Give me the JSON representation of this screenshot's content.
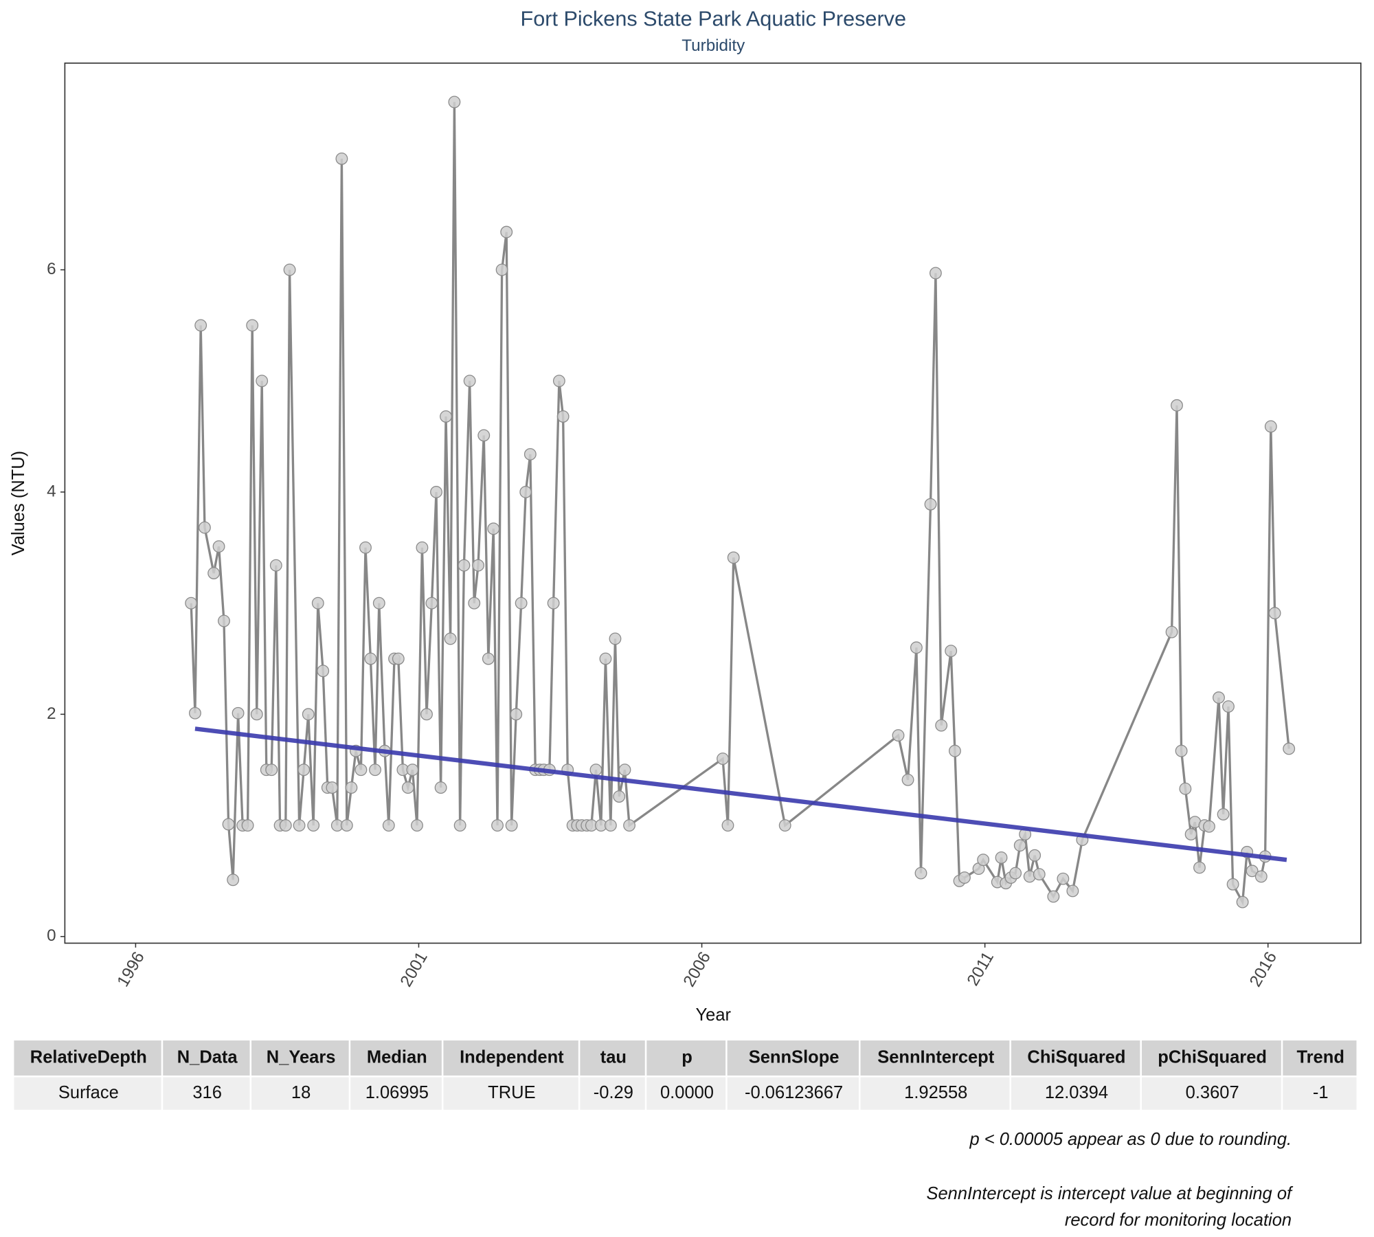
{
  "chart_data": {
    "type": "line",
    "title": "Fort Pickens State Park Aquatic Preserve",
    "subtitle": "Turbidity",
    "x_label": "Year",
    "y_label": "Values (NTU)",
    "xlim": [
      1994.75,
      2017.64
    ],
    "ylim": [
      -0.06,
      7.86
    ],
    "xticks": [
      1996,
      2001,
      2006,
      2011,
      2016
    ],
    "yticks": [
      0,
      2,
      4,
      6
    ],
    "color": "#878787",
    "marker_color": "#cfcfcf",
    "x": [
      1996.98,
      1997.05,
      1997.15,
      1997.22,
      1997.38,
      1997.47,
      1997.56,
      1997.64,
      1997.72,
      1997.81,
      1997.89,
      1997.98,
      1998.06,
      1998.14,
      1998.23,
      1998.31,
      1998.4,
      1998.48,
      1998.55,
      1998.65,
      1998.72,
      1998.89,
      1998.97,
      1999.05,
      1999.14,
      1999.22,
      1999.31,
      1999.39,
      1999.47,
      1999.56,
      1999.64,
      1999.73,
      1999.81,
      1999.89,
      1999.98,
      2000.06,
      2000.15,
      2000.23,
      2000.3,
      2000.4,
      2000.47,
      2000.57,
      2000.64,
      2000.72,
      2000.81,
      2000.89,
      2000.97,
      2001.06,
      2001.14,
      2001.23,
      2001.31,
      2001.39,
      2001.48,
      2001.56,
      2001.63,
      2001.73,
      2001.8,
      2001.9,
      2001.98,
      2002.05,
      2002.15,
      2002.23,
      2002.32,
      2002.39,
      2002.47,
      2002.55,
      2002.64,
      2002.72,
      2002.81,
      2002.89,
      2002.97,
      2003.06,
      2003.14,
      2003.21,
      2003.31,
      2003.38,
      2003.48,
      2003.55,
      2003.63,
      2003.72,
      2003.8,
      2003.88,
      2003.97,
      2004.05,
      2004.13,
      2004.22,
      2004.3,
      2004.39,
      2004.47,
      2004.54,
      2004.64,
      2004.72,
      2006.37,
      2006.46,
      2006.56,
      2007.47,
      2009.47,
      2009.64,
      2009.79,
      2009.87,
      2010.04,
      2010.13,
      2010.23,
      2010.4,
      2010.47,
      2010.55,
      2010.64,
      2010.89,
      2010.97,
      2011.22,
      2011.29,
      2011.37,
      2011.46,
      2011.54,
      2011.62,
      2011.71,
      2011.79,
      2011.88,
      2011.96,
      2012.21,
      2012.38,
      2012.55,
      2012.72,
      2014.3,
      2014.39,
      2014.47,
      2014.54,
      2014.64,
      2014.71,
      2014.79,
      2014.88,
      2014.96,
      2015.13,
      2015.21,
      2015.3,
      2015.38,
      2015.55,
      2015.63,
      2015.72,
      2015.88,
      2015.95,
      2016.05,
      2016.12,
      2016.37
    ],
    "values": [
      3.0,
      2.01,
      5.5,
      3.68,
      3.27,
      3.51,
      2.84,
      1.01,
      0.51,
      2.01,
      1.0,
      1.0,
      5.5,
      2.0,
      5.0,
      1.5,
      1.5,
      3.34,
      1.0,
      1.0,
      6.0,
      1.0,
      1.5,
      2.0,
      1.0,
      3.0,
      2.39,
      1.34,
      1.34,
      1.0,
      7.0,
      1.0,
      1.34,
      1.67,
      1.5,
      3.5,
      2.5,
      1.5,
      3.0,
      1.67,
      1.0,
      2.5,
      2.5,
      1.5,
      1.34,
      1.5,
      1.0,
      3.5,
      2.0,
      3.0,
      4.0,
      1.34,
      4.68,
      2.68,
      7.51,
      1.0,
      3.34,
      5.0,
      3.0,
      3.34,
      4.51,
      2.5,
      3.67,
      1.0,
      6.0,
      6.34,
      1.0,
      2.0,
      3.0,
      4.0,
      4.34,
      1.5,
      1.5,
      1.5,
      1.5,
      3.0,
      5.0,
      4.68,
      1.5,
      1.0,
      1.0,
      1.0,
      1.0,
      1.0,
      1.5,
      1.0,
      2.5,
      1.0,
      2.68,
      1.26,
      1.5,
      1.0,
      1.6,
      1.0,
      3.41,
      1.0,
      1.81,
      1.41,
      2.6,
      0.57,
      3.89,
      5.97,
      1.9,
      2.57,
      1.67,
      0.5,
      0.53,
      0.61,
      0.69,
      0.49,
      0.71,
      0.48,
      0.53,
      0.57,
      0.82,
      0.92,
      0.54,
      0.73,
      0.56,
      0.36,
      0.52,
      0.41,
      0.87,
      2.74,
      4.78,
      1.67,
      1.33,
      0.92,
      1.03,
      0.62,
      1.0,
      0.99,
      2.15,
      1.1,
      2.07,
      0.47,
      0.31,
      0.76,
      0.59,
      0.54,
      0.72,
      4.59,
      2.91,
      1.69
    ],
    "trend_line": {
      "x": [
        1997.05,
        2016.33
      ],
      "values": [
        1.87,
        0.69
      ],
      "color": "#3a3aad"
    }
  },
  "table": {
    "header": [
      "RelativeDepth",
      "N_Data",
      "N_Years",
      "Median",
      "Independent",
      "tau",
      "p",
      "SennSlope",
      "SennIntercept",
      "ChiSquared",
      "pChiSquared",
      "Trend"
    ],
    "rows": [
      [
        "Surface",
        "316",
        "18",
        "1.06995",
        "TRUE",
        "-0.29",
        "0.0000",
        "-0.06123667",
        "1.92558",
        "12.0394",
        "0.3607",
        "-1"
      ]
    ]
  },
  "notes": [
    "p < 0.00005 appear as 0 due to rounding.",
    "SennIntercept is intercept value at beginning of",
    "record for monitoring location"
  ]
}
